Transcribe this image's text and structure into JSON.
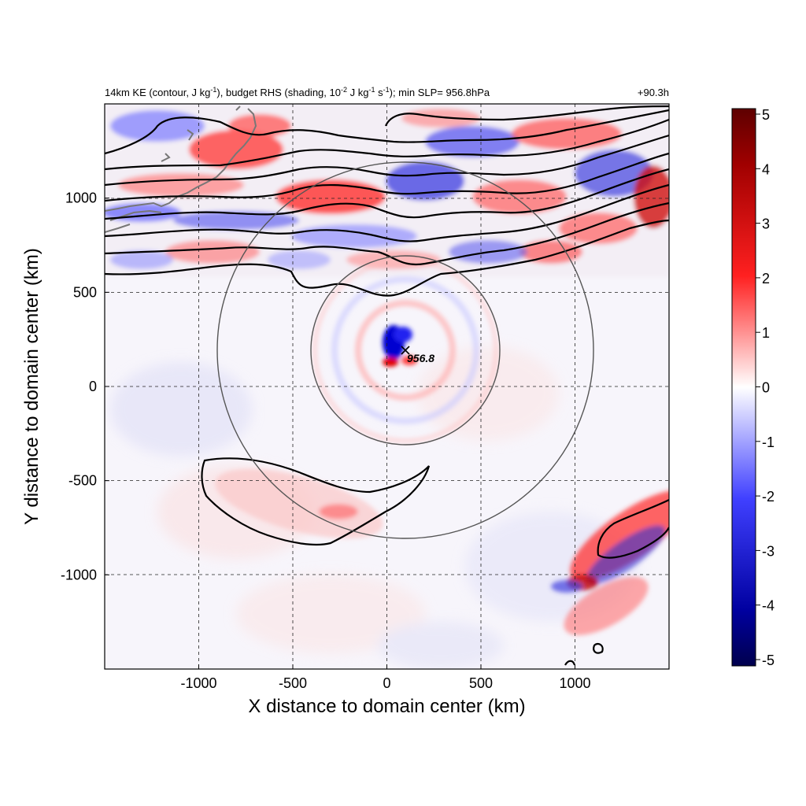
{
  "chart_data": {
    "type": "heatmap",
    "title_left": {
      "parts": [
        "14km KE (contour, J kg",
        "-1",
        "), budget RHS (shading, 10",
        "-2",
        " J kg",
        "-1",
        " s",
        "-1",
        "); min SLP= 956.8hPa"
      ]
    },
    "title_right": "+90.3h",
    "xlabel": "X distance to domain center (km)",
    "ylabel": "Y distance to domain center (km)",
    "xlim": [
      -1500,
      1500
    ],
    "ylim": [
      -1500,
      1500
    ],
    "xticks": [
      -1000,
      -500,
      0,
      500,
      1000
    ],
    "yticks": [
      -1000,
      -500,
      0,
      500,
      1000
    ],
    "grid": "dashed at tick values",
    "colorbar": {
      "ticks": [
        5,
        4,
        3,
        2,
        1,
        0,
        -1,
        -2,
        -3,
        -4,
        -5
      ],
      "range": [
        -5,
        5
      ],
      "colors": [
        "#00004d",
        "#0000ff",
        "#ffffff",
        "#ff0000",
        "#5e0000"
      ]
    },
    "center": {
      "x": 100,
      "y": 190,
      "label": "956.8",
      "marker": "x-icon"
    },
    "rings_km": [
      500,
      1000
    ],
    "ke_contours": {
      "units": "J kg-1",
      "description_lines": 8,
      "southern_closed_contour": true
    }
  }
}
